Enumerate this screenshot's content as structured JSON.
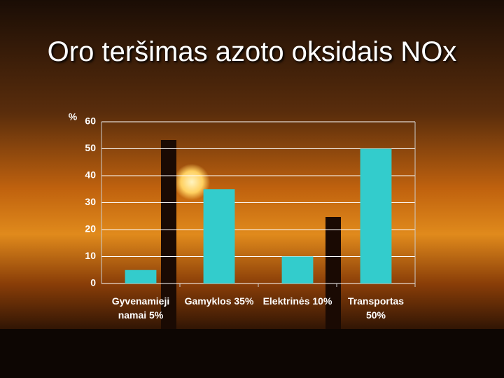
{
  "chart_data": {
    "type": "bar",
    "title": "Oro teršimas azoto oksidais NOx",
    "y_label": "%",
    "categories": [
      "Gyvenamieji namai 5%",
      "Gamyklos 35%",
      "Elektrinės 10%",
      "Transportas 50%"
    ],
    "values": [
      5,
      35,
      10,
      50
    ],
    "color": "#33cccc",
    "ylim": [
      0,
      60
    ],
    "yticks": [
      0,
      10,
      20,
      30,
      40,
      50,
      60
    ],
    "grid": true
  }
}
